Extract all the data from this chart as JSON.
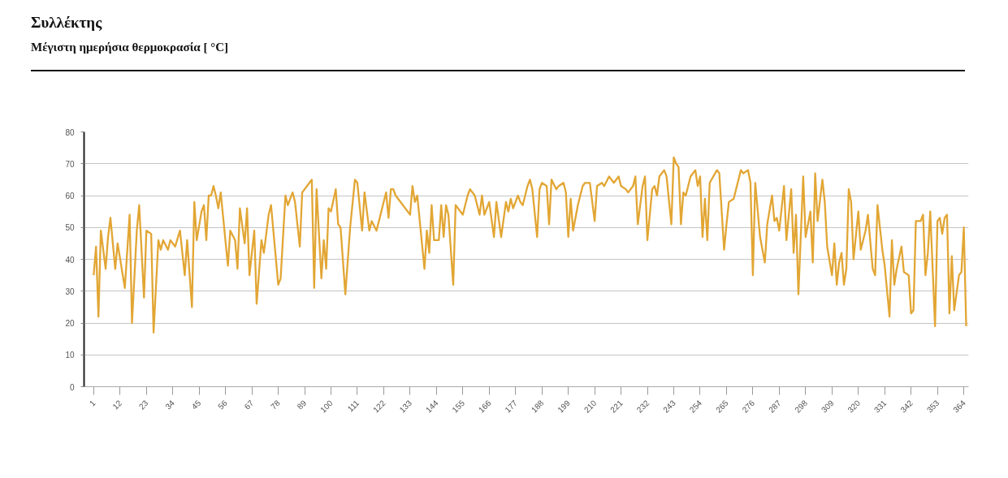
{
  "chart_data": {
    "type": "line",
    "title": "Συλλέκτης",
    "subtitle": "Μέγιστη ημερήσια θερμοκρασία [ °C]",
    "x": [
      1,
      2,
      3,
      4,
      6,
      7,
      8,
      10,
      11,
      14,
      16,
      17,
      19,
      20,
      22,
      23,
      25,
      26,
      28,
      29,
      30,
      32,
      33,
      35,
      37,
      39,
      40,
      42,
      43,
      44,
      46,
      47,
      48,
      49,
      50,
      51,
      52,
      53,
      54,
      57,
      58,
      60,
      61,
      62,
      64,
      65,
      66,
      68,
      69,
      71,
      72,
      74,
      75,
      78,
      79,
      81,
      82,
      84,
      85,
      87,
      88,
      90,
      92,
      93,
      94,
      96,
      97,
      98,
      99,
      100,
      102,
      103,
      104,
      106,
      108,
      110,
      111,
      113,
      114,
      116,
      117,
      119,
      121,
      123,
      124,
      125,
      126,
      127,
      130,
      133,
      134,
      135,
      136,
      139,
      140,
      141,
      142,
      143,
      145,
      146,
      147,
      148,
      149,
      151,
      152,
      155,
      157,
      158,
      160,
      162,
      163,
      164,
      166,
      168,
      169,
      171,
      173,
      174,
      175,
      176,
      178,
      179,
      180,
      182,
      183,
      184,
      186,
      187,
      188,
      190,
      191,
      192,
      194,
      195,
      197,
      198,
      199,
      200,
      201,
      203,
      205,
      206,
      208,
      210,
      211,
      213,
      214,
      216,
      218,
      220,
      221,
      223,
      224,
      226,
      227,
      228,
      230,
      231,
      232,
      234,
      235,
      236,
      237,
      239,
      240,
      242,
      243,
      244,
      245,
      246,
      247,
      248,
      250,
      252,
      253,
      254,
      255,
      256,
      257,
      258,
      261,
      262,
      264,
      265,
      266,
      268,
      271,
      272,
      274,
      275,
      276,
      277,
      279,
      281,
      282,
      284,
      285,
      286,
      287,
      289,
      290,
      292,
      293,
      294,
      295,
      297,
      298,
      300,
      301,
      302,
      303,
      305,
      306,
      307,
      309,
      310,
      311,
      312,
      313,
      314,
      315,
      316,
      317,
      318,
      320,
      321,
      323,
      324,
      326,
      327,
      328,
      330,
      331,
      333,
      334,
      335,
      336,
      338,
      339,
      341,
      342,
      343,
      344,
      346,
      347,
      348,
      349,
      350,
      352,
      353,
      354,
      355,
      356,
      357,
      358,
      359,
      360,
      362,
      363,
      364,
      365
    ],
    "series": [
      {
        "color": "#e2a634",
        "values": [
          35,
          44,
          22,
          49,
          37,
          47,
          53,
          37,
          45,
          31,
          54,
          20,
          49,
          57,
          28,
          49,
          48,
          17,
          46,
          43,
          46,
          43,
          46,
          44,
          49,
          35,
          46,
          25,
          58,
          46,
          55,
          57,
          46,
          60,
          60,
          63,
          60,
          56,
          61,
          38,
          49,
          46,
          37,
          56,
          45,
          56,
          35,
          49,
          26,
          46,
          42,
          54,
          57,
          32,
          34,
          60,
          57,
          61,
          58,
          44,
          61,
          63,
          65,
          31,
          62,
          34,
          46,
          37,
          56,
          55,
          62,
          51,
          50,
          29,
          50,
          65,
          64,
          49,
          61,
          49,
          52,
          49,
          55,
          61,
          53,
          62,
          62,
          60,
          57,
          54,
          63,
          58,
          60,
          37,
          49,
          42,
          57,
          46,
          46,
          57,
          47,
          57,
          54,
          32,
          57,
          54,
          60,
          62,
          60,
          54,
          60,
          54,
          58,
          47,
          58,
          47,
          58,
          55,
          59,
          56,
          60,
          58,
          57,
          63,
          65,
          62,
          47,
          62,
          64,
          63,
          51,
          65,
          62,
          63,
          64,
          61,
          47,
          59,
          49,
          57,
          63,
          64,
          64,
          52,
          63,
          64,
          63,
          66,
          64,
          66,
          63,
          62,
          61,
          63,
          66,
          51,
          63,
          66,
          46,
          62,
          63,
          60,
          66,
          68,
          66,
          51,
          72,
          70,
          69,
          51,
          61,
          60,
          66,
          68,
          63,
          66,
          47,
          59,
          46,
          64,
          68,
          67,
          43,
          51,
          58,
          59,
          68,
          67,
          68,
          64,
          35,
          64,
          47,
          39,
          51,
          60,
          52,
          53,
          49,
          63,
          46,
          62,
          42,
          54,
          29,
          66,
          47,
          55,
          39,
          67,
          52,
          65,
          58,
          44,
          35,
          45,
          32,
          39,
          42,
          32,
          37,
          62,
          58,
          40,
          55,
          43,
          49,
          54,
          37,
          35,
          57,
          43,
          38,
          22,
          46,
          32,
          37,
          44,
          36,
          35,
          23,
          24,
          52,
          52,
          54,
          35,
          42,
          55,
          19,
          52,
          53,
          48,
          53,
          54,
          23,
          41,
          24,
          35,
          36,
          50,
          19
        ]
      }
    ],
    "xlim": [
      -3,
      366
    ],
    "ylim": [
      0,
      80
    ],
    "xticks": [
      1,
      12,
      23,
      34,
      45,
      56,
      67,
      78,
      89,
      100,
      111,
      122,
      133,
      144,
      155,
      166,
      177,
      188,
      199,
      210,
      221,
      232,
      243,
      254,
      265,
      276,
      287,
      298,
      309,
      320,
      331,
      342,
      353,
      364
    ],
    "yticks": [
      0,
      10,
      20,
      30,
      40,
      50,
      60,
      70,
      80
    ],
    "grid": "y",
    "line_style": "solid"
  }
}
